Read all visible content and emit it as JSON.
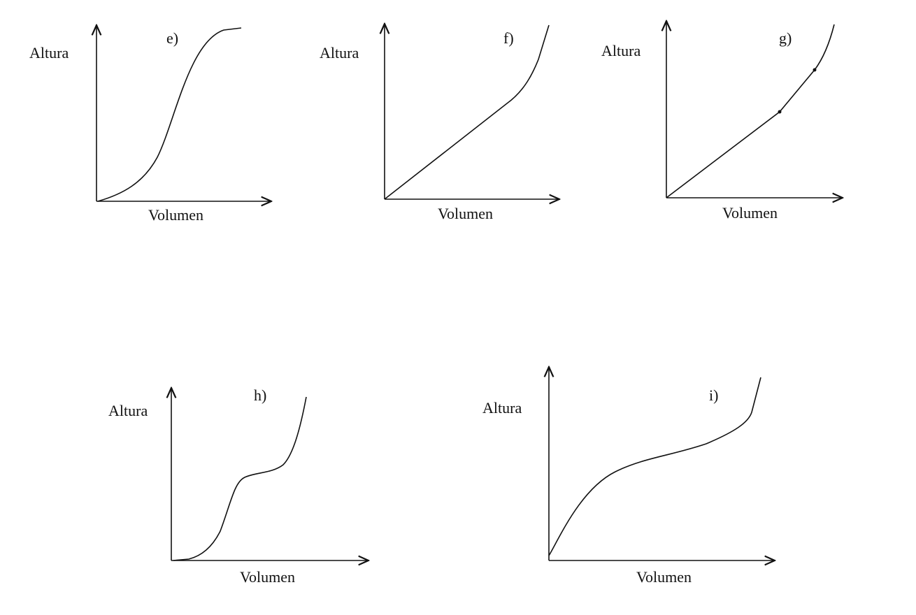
{
  "panels": [
    {
      "label": "e)",
      "y_label": "Altura",
      "x_label": "Volumen"
    },
    {
      "label": "f)",
      "y_label": "Altura",
      "x_label": "Volumen"
    },
    {
      "label": "g)",
      "y_label": "Altura",
      "x_label": "Volumen"
    },
    {
      "label": "h)",
      "y_label": "Altura",
      "x_label": "Volumen"
    },
    {
      "label": "i)",
      "y_label": "Altura",
      "x_label": "Volumen"
    }
  ]
}
